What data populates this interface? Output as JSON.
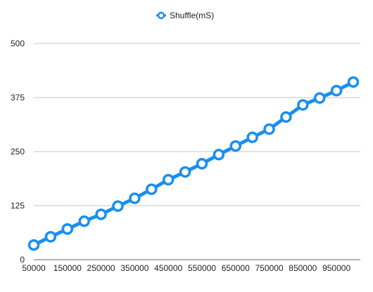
{
  "chart_data": {
    "type": "line",
    "legend": {
      "placement": "top-center"
    },
    "grid": {
      "horizontal": true,
      "vertical": false
    },
    "x": [
      50000,
      100000,
      150000,
      200000,
      250000,
      300000,
      350000,
      400000,
      450000,
      500000,
      550000,
      600000,
      650000,
      700000,
      750000,
      800000,
      850000,
      900000,
      950000,
      1000000
    ],
    "x_tick_labels": [
      "50000",
      "150000",
      "250000",
      "350000",
      "450000",
      "550000",
      "650000",
      "750000",
      "850000",
      "950000"
    ],
    "x_tick_values": [
      50000,
      150000,
      250000,
      350000,
      450000,
      550000,
      650000,
      750000,
      850000,
      950000
    ],
    "y_ticks": [
      0,
      125,
      250,
      375,
      500
    ],
    "ylim": [
      0,
      500
    ],
    "xlim": [
      50000,
      1000000
    ],
    "series": [
      {
        "name": "Shuffle(mS)",
        "color": "#1a8fef",
        "values": [
          34,
          53,
          71,
          89,
          105,
          124,
          142,
          163,
          185,
          203,
          222,
          243,
          263,
          283,
          302,
          330,
          358,
          374,
          391,
          411
        ]
      }
    ]
  }
}
